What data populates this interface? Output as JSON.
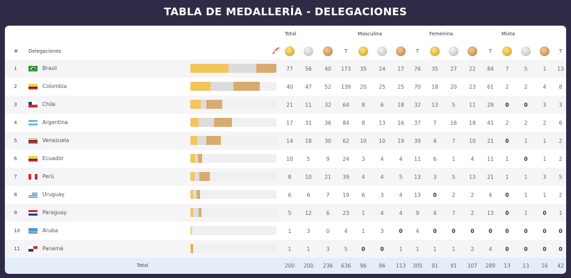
{
  "title": "TABLA DE MEDALLERÍA - DELEGACIONES",
  "groups": [
    "Total",
    "Masculina",
    "Femenina",
    "Mixta"
  ],
  "header": {
    "num": "#",
    "delegaciones": "Delegaciones",
    "t": "T"
  },
  "colors": {
    "gold": "#f3c65c",
    "silver": "#dcdcdc",
    "bronze": "#d8ab72",
    "background": "#2f2a45",
    "total_row": "#e3eef9"
  },
  "rows": [
    {
      "num": "1",
      "country": "Brasil",
      "flag": "brazil",
      "bar": [
        77,
        56,
        40
      ],
      "values": [
        "77",
        "56",
        "40",
        "173",
        "35",
        "24",
        "17",
        "76",
        "35",
        "27",
        "22",
        "84",
        "7",
        "5",
        "1",
        "13"
      ]
    },
    {
      "num": "2",
      "country": "Colombia",
      "flag": "colombia",
      "bar": [
        40,
        47,
        52
      ],
      "values": [
        "40",
        "47",
        "52",
        "139",
        "20",
        "25",
        "25",
        "70",
        "18",
        "20",
        "23",
        "61",
        "2",
        "2",
        "4",
        "8"
      ]
    },
    {
      "num": "3",
      "country": "Chile",
      "flag": "chile",
      "bar": [
        21,
        11,
        32
      ],
      "values": [
        "21",
        "11",
        "32",
        "64",
        "8",
        "6",
        "18",
        "32",
        "13",
        "5",
        "11",
        "29",
        "0",
        "0",
        "3",
        "3"
      ]
    },
    {
      "num": "4",
      "country": "Argentina",
      "flag": "argentina",
      "bar": [
        17,
        31,
        36
      ],
      "values": [
        "17",
        "31",
        "36",
        "84",
        "8",
        "13",
        "16",
        "37",
        "7",
        "16",
        "18",
        "41",
        "2",
        "2",
        "2",
        "6"
      ]
    },
    {
      "num": "5",
      "country": "Venezuela",
      "flag": "venezuela",
      "bar": [
        14,
        18,
        30
      ],
      "values": [
        "14",
        "18",
        "30",
        "62",
        "10",
        "10",
        "19",
        "39",
        "4",
        "7",
        "10",
        "21",
        "0",
        "1",
        "1",
        "2"
      ]
    },
    {
      "num": "6",
      "country": "Ecuador",
      "flag": "ecuador",
      "bar": [
        10,
        5,
        9
      ],
      "values": [
        "10",
        "5",
        "9",
        "24",
        "3",
        "4",
        "4",
        "11",
        "6",
        "1",
        "4",
        "11",
        "1",
        "0",
        "1",
        "2"
      ]
    },
    {
      "num": "7",
      "country": "Perú",
      "flag": "peru",
      "bar": [
        8,
        10,
        21
      ],
      "values": [
        "8",
        "10",
        "21",
        "39",
        "4",
        "4",
        "5",
        "13",
        "3",
        "5",
        "13",
        "21",
        "1",
        "1",
        "3",
        "5"
      ]
    },
    {
      "num": "8",
      "country": "Uruguay",
      "flag": "uruguay",
      "bar": [
        6,
        6,
        7
      ],
      "values": [
        "6",
        "6",
        "7",
        "19",
        "6",
        "3",
        "4",
        "13",
        "0",
        "2",
        "2",
        "4",
        "0",
        "1",
        "1",
        "2"
      ]
    },
    {
      "num": "9",
      "country": "Paraguay",
      "flag": "paraguay",
      "bar": [
        5,
        12,
        6
      ],
      "values": [
        "5",
        "12",
        "6",
        "23",
        "1",
        "4",
        "4",
        "9",
        "4",
        "7",
        "2",
        "13",
        "0",
        "1",
        "0",
        "1"
      ]
    },
    {
      "num": "10",
      "country": "Aruba",
      "flag": "aruba",
      "bar": [
        1,
        3,
        0
      ],
      "values": [
        "1",
        "3",
        "0",
        "4",
        "1",
        "3",
        "0",
        "4",
        "0",
        "0",
        "0",
        "0",
        "0",
        "0",
        "0",
        "0"
      ]
    },
    {
      "num": "11",
      "country": "Panamá",
      "flag": "panama",
      "bar": [
        1,
        1,
        3
      ],
      "values": [
        "1",
        "1",
        "3",
        "5",
        "0",
        "0",
        "1",
        "1",
        "1",
        "1",
        "2",
        "4",
        "0",
        "0",
        "0",
        "0"
      ]
    }
  ],
  "total": {
    "label": "Total",
    "values": [
      "200",
      "200",
      "236",
      "636",
      "96",
      "96",
      "113",
      "305",
      "91",
      "91",
      "107",
      "289",
      "13",
      "13",
      "16",
      "42"
    ]
  }
}
